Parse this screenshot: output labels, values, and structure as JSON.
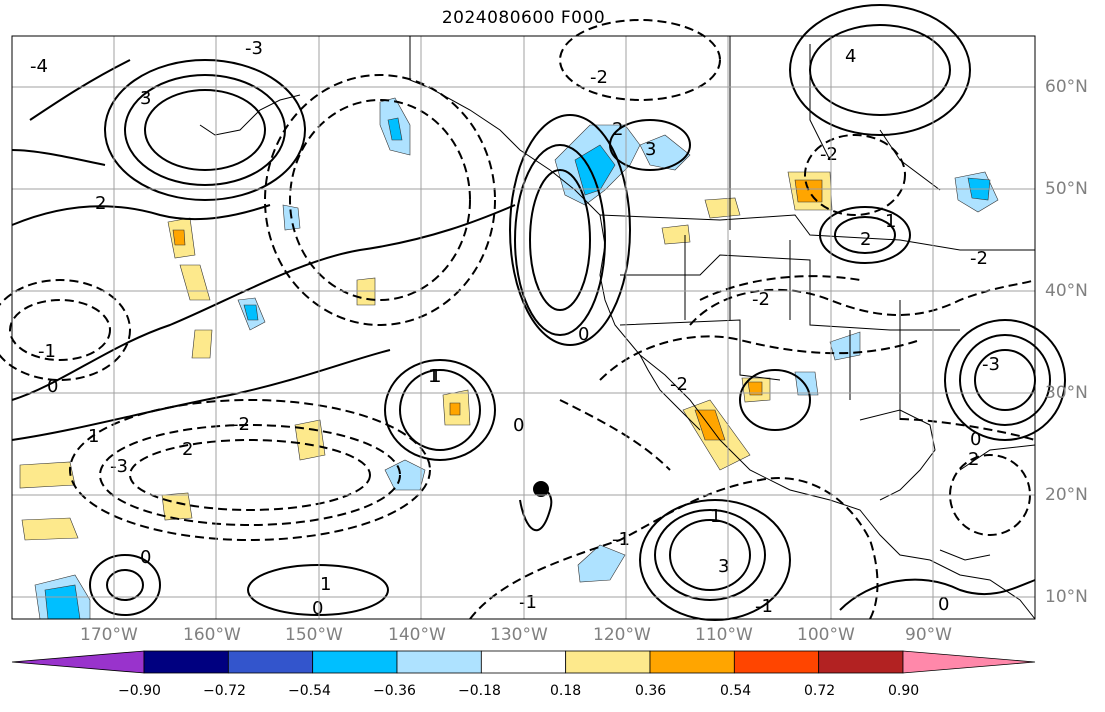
{
  "title": "2024080600 F000",
  "lon_labels": [
    "170°W",
    "160°W",
    "150°W",
    "140°W",
    "130°W",
    "120°W",
    "110°W",
    "100°W",
    "90°W"
  ],
  "lat_labels": [
    "60°N",
    "50°N",
    "40°N",
    "30°N",
    "20°N",
    "10°N"
  ],
  "colorbar": {
    "tick_labels": [
      "−0.90",
      "−0.72",
      "−0.54",
      "−0.36",
      "−0.18",
      "0.18",
      "0.36",
      "0.54",
      "0.72",
      "0.90"
    ],
    "colors": [
      "#9933cc",
      "#000080",
      "#3355cc",
      "#00bfff",
      "#aee2ff",
      "#ffffff",
      "#fde98c",
      "#ffa500",
      "#ff4500",
      "#b22222",
      "#ff88aa"
    ]
  },
  "contour_labels": [
    "-4",
    "-3",
    "-2",
    "-1",
    "0",
    "1",
    "2",
    "3",
    "4",
    "-2",
    "-3",
    "0",
    "1",
    "2",
    "-1",
    "0",
    "-2",
    "1",
    "2",
    "3",
    "0",
    "-2",
    "1",
    "-1",
    "0",
    "-2",
    "1",
    "2",
    "0",
    "-3",
    "1",
    "3",
    "2",
    "-1",
    "0",
    "-2"
  ],
  "colors": {
    "map_line": "#000000",
    "grid": "#a0a0a0",
    "positive_fill": "#fde98c",
    "negative_fill": "#aee2ff",
    "strong_negative": "#00bfff",
    "strong_positive": "#ffa500"
  }
}
